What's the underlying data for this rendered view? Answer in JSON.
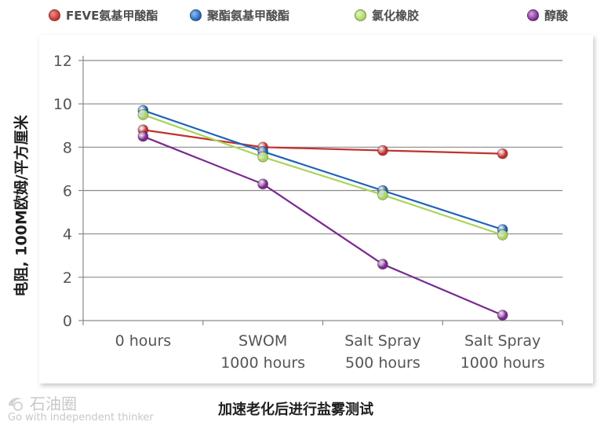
{
  "chart_data": {
    "type": "line",
    "title": "",
    "xlabel": "加速老化后进行盐雾测试",
    "ylabel": "电阻, 100M欧姆/平方厘米",
    "categories": [
      "0 hours",
      "SWOM 1000 hours",
      "Salt Spray 500 hours",
      "Salt Spray 1000 hours"
    ],
    "category_lines": [
      [
        "0 hours"
      ],
      [
        "SWOM",
        "1000 hours"
      ],
      [
        "Salt Spray",
        "500 hours"
      ],
      [
        "Salt Spray",
        "1000 hours"
      ]
    ],
    "ylim": [
      0,
      12
    ],
    "yticks": [
      "0",
      "2",
      "4",
      "6",
      "8",
      "10",
      "12"
    ],
    "grid": true,
    "legend_position": "top",
    "series": [
      {
        "name": "FEVE氨基甲酸酯",
        "color": "#c0322e",
        "values": [
          8.8,
          8.0,
          7.85,
          7.7
        ]
      },
      {
        "name": "聚酯氨基甲酸酯",
        "color": "#1f63b8",
        "values": [
          9.7,
          7.8,
          6.0,
          4.2
        ]
      },
      {
        "name": "氯化橡胶",
        "color": "#a9d45b",
        "values": [
          9.5,
          7.55,
          5.8,
          3.95
        ]
      },
      {
        "name": "醇酸",
        "color": "#7a2a8f",
        "values": [
          8.5,
          6.3,
          2.6,
          0.25
        ]
      }
    ]
  },
  "watermark": {
    "name": "石油圈",
    "slogan": "Go with independent thinker"
  }
}
